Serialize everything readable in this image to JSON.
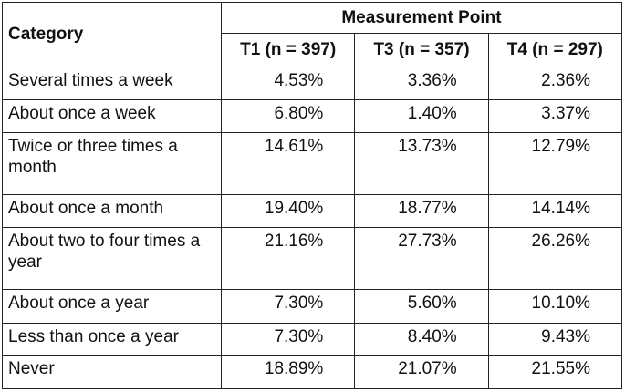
{
  "header": {
    "category_label": "Category",
    "group_label": "Measurement Point",
    "columns": [
      "T1 (n = 397)",
      "T3 (n = 357)",
      "T4 (n = 297)"
    ]
  },
  "rows": [
    {
      "category": "Several times a week",
      "values": [
        "4.53%",
        "3.36%",
        "2.36%"
      ]
    },
    {
      "category": "About once a week",
      "values": [
        "6.80%",
        "1.40%",
        "3.37%"
      ]
    },
    {
      "category": "Twice or three times a month",
      "values": [
        "14.61%",
        "13.73%",
        "12.79%"
      ]
    },
    {
      "category": "About once a month",
      "values": [
        "19.40%",
        "18.77%",
        "14.14%"
      ]
    },
    {
      "category": "About two to four times a year",
      "values": [
        "21.16%",
        "27.73%",
        "26.26%"
      ]
    },
    {
      "category": "About once a year",
      "values": [
        "7.30%",
        "5.60%",
        "10.10%"
      ]
    },
    {
      "category": "Less than once a year",
      "values": [
        "7.30%",
        "8.40%",
        "9.43%"
      ]
    },
    {
      "category": "Never",
      "values": [
        "18.89%",
        "21.07%",
        "21.55%"
      ]
    }
  ]
}
